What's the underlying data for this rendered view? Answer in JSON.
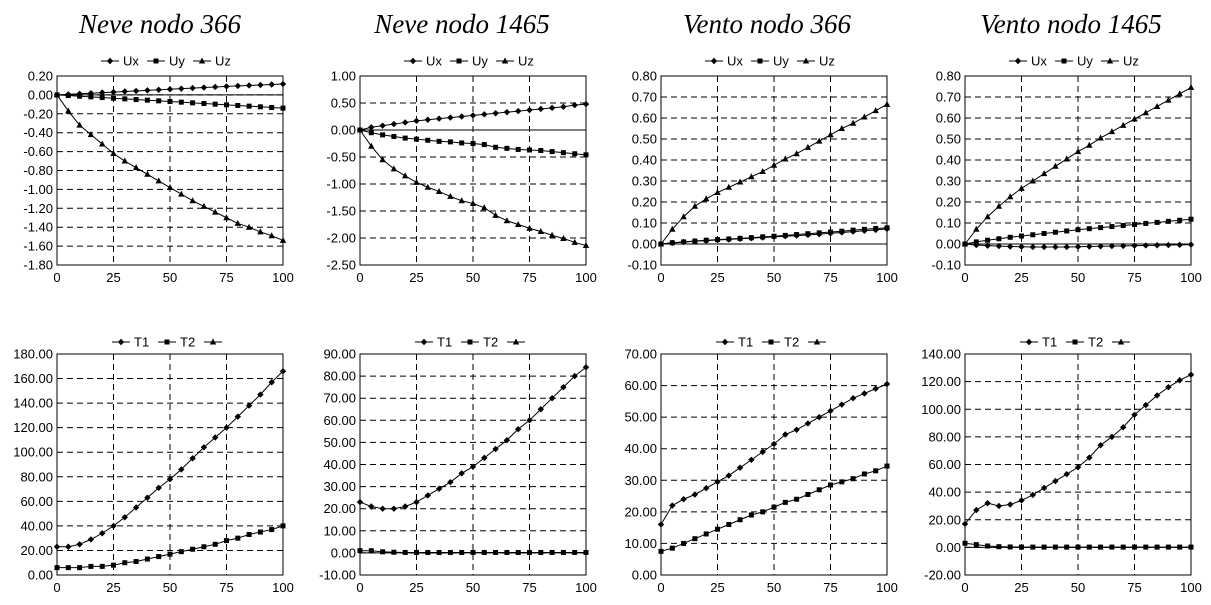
{
  "column_titles": [
    "Neve nodo 366",
    "Neve nodo 1465",
    "Vento nodo 366",
    "Vento nodo 1465"
  ],
  "chart_data": [
    {
      "type": "line",
      "title": "Neve nodo 366",
      "x": [
        0,
        5,
        10,
        15,
        20,
        25,
        30,
        35,
        40,
        45,
        50,
        55,
        60,
        65,
        70,
        75,
        80,
        85,
        90,
        95,
        100
      ],
      "xlim": [
        0,
        100
      ],
      "xticks": [
        0,
        25,
        50,
        75,
        100
      ],
      "ylim": [
        -1.8,
        0.2
      ],
      "ystep": 0.2,
      "ydecimals": 2,
      "grid": true,
      "legend": "top-center",
      "series": [
        {
          "name": "Ux",
          "marker": "diamond",
          "values": [
            0.0,
            0.006,
            0.012,
            0.018,
            0.024,
            0.03,
            0.036,
            0.042,
            0.048,
            0.054,
            0.06,
            0.066,
            0.072,
            0.078,
            0.084,
            0.09,
            0.095,
            0.1,
            0.105,
            0.11,
            0.115
          ]
        },
        {
          "name": "Uy",
          "marker": "square",
          "values": [
            0.0,
            -0.007,
            -0.014,
            -0.021,
            -0.028,
            -0.035,
            -0.042,
            -0.049,
            -0.056,
            -0.063,
            -0.07,
            -0.077,
            -0.084,
            -0.091,
            -0.098,
            -0.105,
            -0.112,
            -0.119,
            -0.126,
            -0.133,
            -0.14
          ]
        },
        {
          "name": "Uz",
          "marker": "triangle",
          "values": [
            0.0,
            -0.17,
            -0.32,
            -0.42,
            -0.52,
            -0.62,
            -0.7,
            -0.77,
            -0.84,
            -0.91,
            -0.98,
            -1.05,
            -1.12,
            -1.18,
            -1.24,
            -1.3,
            -1.36,
            -1.4,
            -1.45,
            -1.49,
            -1.54
          ]
        }
      ]
    },
    {
      "type": "line",
      "title": "Neve nodo 1465",
      "x": [
        0,
        5,
        10,
        15,
        20,
        25,
        30,
        35,
        40,
        45,
        50,
        55,
        60,
        65,
        70,
        75,
        80,
        85,
        90,
        95,
        100
      ],
      "xlim": [
        0,
        100
      ],
      "xticks": [
        0,
        25,
        50,
        75,
        100
      ],
      "ylim": [
        -2.5,
        1.0
      ],
      "ystep": 0.5,
      "ydecimals": 2,
      "grid": true,
      "legend": "top-center",
      "series": [
        {
          "name": "Ux",
          "marker": "diamond",
          "values": [
            0.0,
            0.05,
            0.08,
            0.11,
            0.14,
            0.17,
            0.19,
            0.21,
            0.23,
            0.25,
            0.27,
            0.29,
            0.31,
            0.33,
            0.35,
            0.37,
            0.39,
            0.41,
            0.43,
            0.46,
            0.48
          ]
        },
        {
          "name": "Uy",
          "marker": "square",
          "values": [
            0.0,
            -0.05,
            -0.09,
            -0.12,
            -0.15,
            -0.17,
            -0.19,
            -0.21,
            -0.22,
            -0.24,
            -0.25,
            -0.27,
            -0.32,
            -0.34,
            -0.36,
            -0.37,
            -0.38,
            -0.4,
            -0.42,
            -0.44,
            -0.46
          ]
        },
        {
          "name": "Uz",
          "marker": "triangle",
          "values": [
            0.0,
            -0.3,
            -0.55,
            -0.72,
            -0.85,
            -0.97,
            -1.06,
            -1.14,
            -1.23,
            -1.31,
            -1.36,
            -1.44,
            -1.58,
            -1.68,
            -1.75,
            -1.82,
            -1.88,
            -1.95,
            -2.01,
            -2.08,
            -2.14
          ]
        }
      ]
    },
    {
      "type": "line",
      "title": "Vento nodo 366",
      "x": [
        0,
        5,
        10,
        15,
        20,
        25,
        30,
        35,
        40,
        45,
        50,
        55,
        60,
        65,
        70,
        75,
        80,
        85,
        90,
        95,
        100
      ],
      "xlim": [
        0,
        100
      ],
      "xticks": [
        0,
        25,
        50,
        75,
        100
      ],
      "ylim": [
        -0.1,
        0.8
      ],
      "ystep": 0.1,
      "ydecimals": 2,
      "grid": true,
      "legend": "top-center",
      "series": [
        {
          "name": "Ux",
          "marker": "diamond",
          "values": [
            0.0,
            0.005,
            0.009,
            0.013,
            0.016,
            0.019,
            0.022,
            0.025,
            0.028,
            0.031,
            0.034,
            0.037,
            0.04,
            0.043,
            0.047,
            0.051,
            0.055,
            0.059,
            0.063,
            0.067,
            0.072
          ]
        },
        {
          "name": "Uy",
          "marker": "square",
          "values": [
            0.0,
            0.006,
            0.01,
            0.014,
            0.018,
            0.021,
            0.024,
            0.027,
            0.03,
            0.034,
            0.037,
            0.041,
            0.045,
            0.049,
            0.053,
            0.057,
            0.061,
            0.066,
            0.07,
            0.074,
            0.077
          ]
        },
        {
          "name": "Uz",
          "marker": "triangle",
          "values": [
            0.0,
            0.07,
            0.13,
            0.18,
            0.215,
            0.245,
            0.27,
            0.295,
            0.32,
            0.345,
            0.375,
            0.405,
            0.43,
            0.46,
            0.49,
            0.52,
            0.55,
            0.575,
            0.605,
            0.635,
            0.665
          ]
        }
      ]
    },
    {
      "type": "line",
      "title": "Vento nodo 1465",
      "x": [
        0,
        5,
        10,
        15,
        20,
        25,
        30,
        35,
        40,
        45,
        50,
        55,
        60,
        65,
        70,
        75,
        80,
        85,
        90,
        95,
        100
      ],
      "xlim": [
        0,
        100
      ],
      "xticks": [
        0,
        25,
        50,
        75,
        100
      ],
      "ylim": [
        -0.1,
        0.8
      ],
      "ystep": 0.1,
      "ydecimals": 2,
      "grid": true,
      "legend": "top-center",
      "series": [
        {
          "name": "Ux",
          "marker": "diamond",
          "values": [
            0.0,
            -0.005,
            -0.008,
            -0.01,
            -0.012,
            -0.013,
            -0.014,
            -0.014,
            -0.014,
            -0.014,
            -0.013,
            -0.012,
            -0.011,
            -0.01,
            -0.009,
            -0.008,
            -0.007,
            -0.006,
            -0.005,
            -0.004,
            -0.003
          ]
        },
        {
          "name": "Uy",
          "marker": "square",
          "values": [
            0.0,
            0.01,
            0.018,
            0.025,
            0.032,
            0.038,
            0.044,
            0.05,
            0.056,
            0.062,
            0.068,
            0.073,
            0.078,
            0.083,
            0.088,
            0.093,
            0.098,
            0.103,
            0.108,
            0.113,
            0.118
          ]
        },
        {
          "name": "Uz",
          "marker": "triangle",
          "values": [
            0.0,
            0.07,
            0.13,
            0.18,
            0.225,
            0.265,
            0.3,
            0.335,
            0.37,
            0.405,
            0.44,
            0.47,
            0.505,
            0.535,
            0.565,
            0.595,
            0.625,
            0.655,
            0.685,
            0.715,
            0.745
          ]
        }
      ]
    },
    {
      "type": "line",
      "x": [
        0,
        5,
        10,
        15,
        20,
        25,
        30,
        35,
        40,
        45,
        50,
        55,
        60,
        65,
        70,
        75,
        80,
        85,
        90,
        95,
        100
      ],
      "xlim": [
        0,
        100
      ],
      "xticks": [
        0,
        25,
        50,
        75,
        100
      ],
      "ylim": [
        0,
        180
      ],
      "ystep": 20,
      "ydecimals": 2,
      "grid": true,
      "legend": "top-center",
      "legend_entries": [
        {
          "name": "T1",
          "marker": "diamond"
        },
        {
          "name": "T2",
          "marker": "square"
        },
        {
          "name": "",
          "marker": "triangle"
        }
      ],
      "series": [
        {
          "name": "T1",
          "marker": "diamond",
          "values": [
            23,
            23,
            25,
            29,
            34,
            40,
            47,
            55,
            63,
            71,
            78,
            86,
            95,
            104,
            112,
            120,
            129,
            138,
            147,
            157,
            166
          ]
        },
        {
          "name": "T2",
          "marker": "square",
          "values": [
            6,
            6,
            6,
            7,
            7,
            8,
            10,
            11,
            13,
            15,
            17,
            19,
            21,
            23,
            25,
            28,
            30,
            33,
            35,
            37,
            40
          ]
        }
      ]
    },
    {
      "type": "line",
      "x": [
        0,
        5,
        10,
        15,
        20,
        25,
        30,
        35,
        40,
        45,
        50,
        55,
        60,
        65,
        70,
        75,
        80,
        85,
        90,
        95,
        100
      ],
      "xlim": [
        0,
        100
      ],
      "xticks": [
        0,
        25,
        50,
        75,
        100
      ],
      "ylim": [
        -10,
        90
      ],
      "ystep": 10,
      "ydecimals": 2,
      "grid": true,
      "legend": "top-center",
      "legend_entries": [
        {
          "name": "T1",
          "marker": "diamond"
        },
        {
          "name": "T2",
          "marker": "square"
        },
        {
          "name": "",
          "marker": "triangle"
        }
      ],
      "series": [
        {
          "name": "T1",
          "marker": "diamond",
          "values": [
            23,
            21,
            20,
            20,
            21,
            23,
            26,
            29,
            32,
            36,
            39,
            43,
            47,
            51,
            56,
            60,
            65,
            70,
            75,
            80,
            84
          ]
        },
        {
          "name": "T2",
          "marker": "square",
          "values": [
            1,
            1,
            0.5,
            0.3,
            0.2,
            0.2,
            0.2,
            0.2,
            0.2,
            0.2,
            0.2,
            0.2,
            0.2,
            0.2,
            0.2,
            0.2,
            0.2,
            0.2,
            0.2,
            0.2,
            0.2
          ]
        }
      ]
    },
    {
      "type": "line",
      "x": [
        0,
        5,
        10,
        15,
        20,
        25,
        30,
        35,
        40,
        45,
        50,
        55,
        60,
        65,
        70,
        75,
        80,
        85,
        90,
        95,
        100
      ],
      "xlim": [
        0,
        100
      ],
      "xticks": [
        0,
        25,
        50,
        75,
        100
      ],
      "ylim": [
        0,
        70
      ],
      "ystep": 10,
      "ydecimals": 2,
      "grid": true,
      "legend": "top-center",
      "legend_entries": [
        {
          "name": "T1",
          "marker": "diamond"
        },
        {
          "name": "T2",
          "marker": "square"
        },
        {
          "name": "",
          "marker": "triangle"
        }
      ],
      "series": [
        {
          "name": "T1",
          "marker": "diamond",
          "values": [
            16,
            22,
            24,
            25.5,
            27.5,
            29.5,
            31.5,
            34,
            36.5,
            39,
            41.5,
            44.5,
            46,
            48,
            50,
            52,
            54,
            56,
            57.5,
            59,
            60.5
          ]
        },
        {
          "name": "T2",
          "marker": "square",
          "values": [
            7.5,
            8.5,
            10,
            11.5,
            13,
            14.5,
            16,
            17.5,
            19,
            20,
            21.5,
            23,
            24,
            25.5,
            27,
            28.5,
            29.5,
            30.5,
            32,
            33,
            34.5
          ]
        }
      ]
    },
    {
      "type": "line",
      "x": [
        0,
        5,
        10,
        15,
        20,
        25,
        30,
        35,
        40,
        45,
        50,
        55,
        60,
        65,
        70,
        75,
        80,
        85,
        90,
        95,
        100
      ],
      "xlim": [
        0,
        100
      ],
      "xticks": [
        0,
        25,
        50,
        75,
        100
      ],
      "ylim": [
        -20,
        140
      ],
      "ystep": 20,
      "ydecimals": 2,
      "grid": true,
      "legend": "top-center",
      "legend_entries": [
        {
          "name": "T1",
          "marker": "diamond"
        },
        {
          "name": "T2",
          "marker": "square"
        },
        {
          "name": "",
          "marker": "triangle"
        }
      ],
      "series": [
        {
          "name": "T1",
          "marker": "diamond",
          "values": [
            17,
            27,
            32,
            30,
            31,
            34,
            38,
            43,
            48,
            53,
            58,
            65,
            74,
            80,
            87,
            96,
            103,
            110,
            116,
            121,
            125
          ]
        },
        {
          "name": "T2",
          "marker": "square",
          "values": [
            3,
            2,
            1,
            0.5,
            0.3,
            0.2,
            0.2,
            0.2,
            0.2,
            0.2,
            0.2,
            0.2,
            0.2,
            0.2,
            0.2,
            0.2,
            0.2,
            0.2,
            0.2,
            0.2,
            0.2
          ]
        }
      ]
    }
  ]
}
